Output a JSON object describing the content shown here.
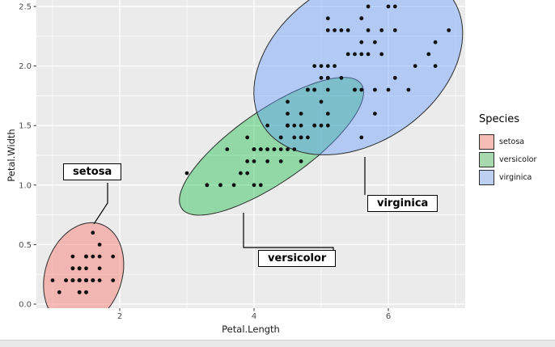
{
  "chart_data": {
    "type": "scatter",
    "title": "",
    "xlabel": "Petal.Length",
    "ylabel": "Petal.Width",
    "x_ticks": [
      2,
      4,
      6
    ],
    "x_tick_labels": [
      "2",
      "4",
      "6"
    ],
    "x_minor": [
      1,
      3,
      5,
      7
    ],
    "y_ticks": [
      0,
      0.5,
      1,
      1.5,
      2,
      2.5
    ],
    "y_tick_labels": [
      "0.0",
      "0.5",
      "1.0",
      "1.5",
      "2.0",
      "2.5"
    ],
    "y_minor": [
      0.25,
      0.75,
      1.25,
      1.75,
      2.25
    ],
    "xlim": [
      0.76,
      7.14
    ],
    "ylim": [
      -0.03,
      2.55
    ],
    "grid": true,
    "panel_color": "#EBEBEB",
    "grid_color": "#FFFFFF",
    "point_color": "#111111",
    "legend": {
      "title": "Species",
      "position": "right",
      "entries": [
        {
          "label": "setosa",
          "color": "#F5BDB6"
        },
        {
          "label": "versicolor",
          "color": "#A8D9AE"
        },
        {
          "label": "virginica",
          "color": "#BDD0F2"
        }
      ]
    },
    "annotations": [
      {
        "label": "setosa"
      },
      {
        "label": "versicolor"
      },
      {
        "label": "virginica"
      }
    ],
    "series": [
      {
        "name": "setosa",
        "fill": "rgba(248,118,109,0.45)",
        "points": [
          [
            1.4,
            0.2
          ],
          [
            1.4,
            0.2
          ],
          [
            1.3,
            0.2
          ],
          [
            1.5,
            0.2
          ],
          [
            1.4,
            0.2
          ],
          [
            1.7,
            0.4
          ],
          [
            1.4,
            0.3
          ],
          [
            1.5,
            0.2
          ],
          [
            1.4,
            0.2
          ],
          [
            1.5,
            0.1
          ],
          [
            1.5,
            0.2
          ],
          [
            1.6,
            0.2
          ],
          [
            1.4,
            0.1
          ],
          [
            1.1,
            0.1
          ],
          [
            1.2,
            0.2
          ],
          [
            1.5,
            0.4
          ],
          [
            1.3,
            0.4
          ],
          [
            1.4,
            0.3
          ],
          [
            1.7,
            0.3
          ],
          [
            1.5,
            0.3
          ],
          [
            1.7,
            0.2
          ],
          [
            1.5,
            0.4
          ],
          [
            1.0,
            0.2
          ],
          [
            1.7,
            0.5
          ],
          [
            1.9,
            0.2
          ],
          [
            1.6,
            0.2
          ],
          [
            1.6,
            0.4
          ],
          [
            1.5,
            0.2
          ],
          [
            1.4,
            0.2
          ],
          [
            1.6,
            0.2
          ],
          [
            1.6,
            0.2
          ],
          [
            1.5,
            0.4
          ],
          [
            1.5,
            0.1
          ],
          [
            1.4,
            0.2
          ],
          [
            1.5,
            0.2
          ],
          [
            1.2,
            0.2
          ],
          [
            1.3,
            0.2
          ],
          [
            1.4,
            0.1
          ],
          [
            1.3,
            0.2
          ],
          [
            1.5,
            0.2
          ],
          [
            1.3,
            0.3
          ],
          [
            1.3,
            0.3
          ],
          [
            1.3,
            0.2
          ],
          [
            1.6,
            0.6
          ],
          [
            1.9,
            0.4
          ],
          [
            1.4,
            0.3
          ],
          [
            1.6,
            0.2
          ],
          [
            1.4,
            0.2
          ],
          [
            1.5,
            0.2
          ],
          [
            1.4,
            0.2
          ]
        ]
      },
      {
        "name": "versicolor",
        "fill": "rgba(0,186,56,0.38)",
        "points": [
          [
            4.7,
            1.4
          ],
          [
            4.5,
            1.5
          ],
          [
            4.9,
            1.5
          ],
          [
            4.0,
            1.3
          ],
          [
            4.6,
            1.5
          ],
          [
            4.5,
            1.3
          ],
          [
            4.7,
            1.6
          ],
          [
            3.3,
            1.0
          ],
          [
            4.6,
            1.3
          ],
          [
            3.9,
            1.4
          ],
          [
            3.5,
            1.0
          ],
          [
            4.2,
            1.5
          ],
          [
            4.0,
            1.0
          ],
          [
            4.7,
            1.4
          ],
          [
            3.6,
            1.3
          ],
          [
            4.4,
            1.4
          ],
          [
            4.5,
            1.5
          ],
          [
            4.1,
            1.0
          ],
          [
            4.5,
            1.5
          ],
          [
            3.9,
            1.1
          ],
          [
            4.8,
            1.8
          ],
          [
            4.0,
            1.3
          ],
          [
            4.9,
            1.5
          ],
          [
            4.7,
            1.2
          ],
          [
            4.3,
            1.3
          ],
          [
            4.4,
            1.4
          ],
          [
            4.8,
            1.4
          ],
          [
            5.0,
            1.7
          ],
          [
            4.5,
            1.5
          ],
          [
            3.5,
            1.0
          ],
          [
            3.8,
            1.1
          ],
          [
            3.7,
            1.0
          ],
          [
            3.9,
            1.2
          ],
          [
            5.1,
            1.6
          ],
          [
            4.5,
            1.5
          ],
          [
            4.5,
            1.6
          ],
          [
            4.7,
            1.5
          ],
          [
            4.4,
            1.3
          ],
          [
            4.1,
            1.3
          ],
          [
            4.0,
            1.3
          ],
          [
            4.4,
            1.2
          ],
          [
            4.6,
            1.4
          ],
          [
            4.0,
            1.2
          ],
          [
            3.3,
            1.0
          ],
          [
            4.2,
            1.3
          ],
          [
            4.2,
            1.2
          ],
          [
            4.2,
            1.3
          ],
          [
            4.3,
            1.3
          ],
          [
            3.0,
            1.1
          ],
          [
            4.1,
            1.3
          ]
        ]
      },
      {
        "name": "virginica",
        "fill": "rgba(97,156,255,0.42)",
        "points": [
          [
            6.0,
            2.5
          ],
          [
            5.1,
            1.9
          ],
          [
            5.9,
            2.1
          ],
          [
            5.6,
            1.8
          ],
          [
            5.8,
            2.2
          ],
          [
            6.6,
            2.1
          ],
          [
            4.5,
            1.7
          ],
          [
            6.3,
            1.8
          ],
          [
            5.8,
            1.8
          ],
          [
            6.1,
            2.5
          ],
          [
            5.1,
            2.0
          ],
          [
            5.3,
            1.9
          ],
          [
            5.5,
            2.1
          ],
          [
            5.0,
            2.0
          ],
          [
            5.1,
            2.4
          ],
          [
            5.3,
            2.3
          ],
          [
            5.5,
            1.8
          ],
          [
            6.7,
            2.2
          ],
          [
            6.9,
            2.3
          ],
          [
            5.0,
            1.5
          ],
          [
            5.7,
            2.3
          ],
          [
            4.9,
            2.0
          ],
          [
            6.7,
            2.0
          ],
          [
            4.9,
            1.8
          ],
          [
            5.7,
            2.1
          ],
          [
            6.0,
            1.8
          ],
          [
            4.8,
            1.8
          ],
          [
            4.9,
            1.8
          ],
          [
            5.6,
            2.1
          ],
          [
            5.8,
            1.6
          ],
          [
            6.1,
            1.9
          ],
          [
            6.4,
            2.0
          ],
          [
            5.6,
            2.2
          ],
          [
            5.1,
            1.5
          ],
          [
            5.6,
            1.4
          ],
          [
            6.1,
            2.3
          ],
          [
            5.6,
            2.4
          ],
          [
            5.5,
            1.8
          ],
          [
            4.8,
            1.8
          ],
          [
            5.4,
            2.1
          ],
          [
            5.6,
            2.4
          ],
          [
            5.1,
            2.3
          ],
          [
            5.1,
            1.9
          ],
          [
            5.9,
            2.3
          ],
          [
            5.7,
            2.5
          ],
          [
            5.2,
            2.3
          ],
          [
            5.0,
            1.9
          ],
          [
            5.2,
            2.0
          ],
          [
            5.4,
            2.3
          ],
          [
            5.1,
            1.8
          ]
        ]
      }
    ],
    "ellipses": [
      {
        "series": "setosa",
        "cx": 1.462,
        "cy": 0.246,
        "a": 0.61,
        "b": 0.42,
        "angle": 16.3
      },
      {
        "series": "versicolor",
        "cx": 4.26,
        "cy": 1.326,
        "a": 1.45,
        "b": 0.34,
        "angle": 19.4
      },
      {
        "series": "virginica",
        "cx": 5.552,
        "cy": 2.026,
        "a": 1.58,
        "b": 0.72,
        "angle": 11.5
      }
    ]
  }
}
